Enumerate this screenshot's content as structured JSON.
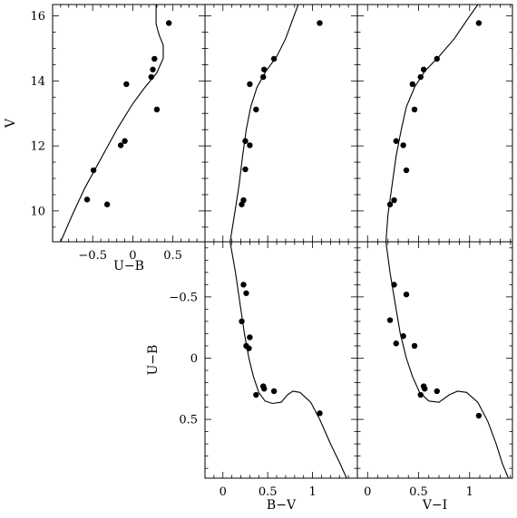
{
  "chart_data": [
    {
      "id": "vub",
      "type": "scatter",
      "xlabel": "U−B",
      "ylabel": "V",
      "xlim": [
        -1.0,
        0.9
      ],
      "ylim": [
        16.35,
        9.05
      ],
      "xticks": [
        {
          "v": -0.5,
          "l": "−0.5"
        },
        {
          "v": 0,
          "l": "0"
        },
        {
          "v": 0.5,
          "l": "0.5"
        }
      ],
      "yticks": [
        {
          "v": 10,
          "l": "10"
        },
        {
          "v": 12,
          "l": "12"
        },
        {
          "v": 14,
          "l": "14"
        },
        {
          "v": 16,
          "l": "16"
        }
      ],
      "points": [
        [
          -0.57,
          10.35
        ],
        [
          -0.49,
          11.25
        ],
        [
          -0.32,
          10.2
        ],
        [
          -0.15,
          12.02
        ],
        [
          -0.1,
          12.15
        ],
        [
          -0.08,
          13.9
        ],
        [
          0.23,
          14.12
        ],
        [
          0.25,
          14.35
        ],
        [
          0.27,
          14.68
        ],
        [
          0.3,
          13.12
        ],
        [
          0.45,
          15.78
        ]
      ],
      "curve": [
        [
          -0.9,
          9.05
        ],
        [
          -0.75,
          9.9
        ],
        [
          -0.6,
          10.7
        ],
        [
          -0.4,
          11.6
        ],
        [
          -0.2,
          12.5
        ],
        [
          0.0,
          13.3
        ],
        [
          0.15,
          13.8
        ],
        [
          0.3,
          14.25
        ],
        [
          0.38,
          14.7
        ],
        [
          0.38,
          15.1
        ],
        [
          0.33,
          15.4
        ],
        [
          0.29,
          15.75
        ],
        [
          0.29,
          16.35
        ]
      ]
    },
    {
      "id": "vbv",
      "type": "scatter",
      "xlabel": "",
      "ylabel": "",
      "xlim": [
        -0.2,
        1.5
      ],
      "ylim": [
        16.35,
        9.05
      ],
      "xticks": [],
      "yticks": [],
      "points": [
        [
          0.21,
          10.2
        ],
        [
          0.23,
          10.33
        ],
        [
          0.25,
          11.28
        ],
        [
          0.25,
          12.15
        ],
        [
          0.3,
          12.02
        ],
        [
          0.3,
          13.9
        ],
        [
          0.37,
          13.12
        ],
        [
          0.45,
          14.12
        ],
        [
          0.46,
          14.35
        ],
        [
          0.57,
          14.68
        ],
        [
          1.08,
          15.78
        ]
      ],
      "curve": [
        [
          0.08,
          9.05
        ],
        [
          0.13,
          9.9
        ],
        [
          0.18,
          10.8
        ],
        [
          0.22,
          11.7
        ],
        [
          0.26,
          12.5
        ],
        [
          0.31,
          13.2
        ],
        [
          0.38,
          13.8
        ],
        [
          0.48,
          14.3
        ],
        [
          0.6,
          14.75
        ],
        [
          0.7,
          15.3
        ],
        [
          0.78,
          15.9
        ],
        [
          0.84,
          16.35
        ]
      ]
    },
    {
      "id": "vvi",
      "type": "scatter",
      "xlabel": "",
      "ylabel": "",
      "xlim": [
        -0.1,
        1.42
      ],
      "ylim": [
        16.35,
        9.05
      ],
      "xticks": [],
      "yticks": [],
      "points": [
        [
          0.22,
          10.2
        ],
        [
          0.26,
          10.33
        ],
        [
          0.38,
          11.25
        ],
        [
          0.35,
          12.02
        ],
        [
          0.28,
          12.15
        ],
        [
          0.46,
          13.12
        ],
        [
          0.44,
          13.9
        ],
        [
          0.52,
          14.12
        ],
        [
          0.55,
          14.35
        ],
        [
          0.68,
          14.68
        ],
        [
          1.09,
          15.78
        ]
      ],
      "curve": [
        [
          0.18,
          9.05
        ],
        [
          0.2,
          9.9
        ],
        [
          0.24,
          10.8
        ],
        [
          0.28,
          11.7
        ],
        [
          0.33,
          12.5
        ],
        [
          0.38,
          13.2
        ],
        [
          0.46,
          13.8
        ],
        [
          0.56,
          14.3
        ],
        [
          0.7,
          14.75
        ],
        [
          0.85,
          15.3
        ],
        [
          0.98,
          15.9
        ],
        [
          1.08,
          16.35
        ]
      ]
    },
    {
      "id": "ubbv",
      "type": "scatter",
      "xlabel": "B−V",
      "ylabel": "U−B",
      "xlim": [
        -0.2,
        1.5
      ],
      "ylim": [
        -0.95,
        0.98
      ],
      "xticks": [
        {
          "v": 0,
          "l": "0"
        },
        {
          "v": 0.5,
          "l": "0.5"
        },
        {
          "v": 1,
          "l": "1"
        }
      ],
      "yticks": [
        {
          "v": -0.5,
          "l": "−0.5"
        },
        {
          "v": 0,
          "l": "0"
        },
        {
          "v": 0.5,
          "l": "0.5"
        }
      ],
      "points": [
        [
          0.23,
          -0.6
        ],
        [
          0.26,
          -0.53
        ],
        [
          0.21,
          -0.3
        ],
        [
          0.3,
          -0.17
        ],
        [
          0.26,
          -0.1
        ],
        [
          0.29,
          -0.08
        ],
        [
          0.37,
          0.3
        ],
        [
          0.45,
          0.23
        ],
        [
          0.46,
          0.25
        ],
        [
          0.57,
          0.27
        ],
        [
          1.08,
          0.45
        ]
      ],
      "curve": [
        [
          0.08,
          -0.95
        ],
        [
          0.14,
          -0.7
        ],
        [
          0.19,
          -0.45
        ],
        [
          0.24,
          -0.2
        ],
        [
          0.29,
          0.0
        ],
        [
          0.34,
          0.15
        ],
        [
          0.4,
          0.28
        ],
        [
          0.47,
          0.35
        ],
        [
          0.55,
          0.37
        ],
        [
          0.65,
          0.36
        ],
        [
          0.72,
          0.3
        ],
        [
          0.78,
          0.27
        ],
        [
          0.86,
          0.28
        ],
        [
          0.98,
          0.36
        ],
        [
          1.08,
          0.5
        ],
        [
          1.2,
          0.7
        ],
        [
          1.3,
          0.85
        ],
        [
          1.38,
          0.98
        ]
      ]
    },
    {
      "id": "ubvi",
      "type": "scatter",
      "xlabel": "V−I",
      "ylabel": "",
      "xlim": [
        -0.1,
        1.42
      ],
      "ylim": [
        -0.95,
        0.98
      ],
      "xticks": [
        {
          "v": 0,
          "l": "0"
        },
        {
          "v": 0.5,
          "l": "0.5"
        },
        {
          "v": 1,
          "l": "1"
        }
      ],
      "yticks": [],
      "points": [
        [
          0.26,
          -0.6
        ],
        [
          0.38,
          -0.52
        ],
        [
          0.22,
          -0.31
        ],
        [
          0.35,
          -0.18
        ],
        [
          0.28,
          -0.12
        ],
        [
          0.46,
          -0.1
        ],
        [
          0.52,
          0.3
        ],
        [
          0.55,
          0.23
        ],
        [
          0.56,
          0.25
        ],
        [
          0.68,
          0.27
        ],
        [
          1.09,
          0.47
        ]
      ],
      "curve": [
        [
          0.18,
          -0.95
        ],
        [
          0.22,
          -0.7
        ],
        [
          0.27,
          -0.45
        ],
        [
          0.32,
          -0.2
        ],
        [
          0.38,
          0.0
        ],
        [
          0.44,
          0.15
        ],
        [
          0.51,
          0.28
        ],
        [
          0.6,
          0.35
        ],
        [
          0.7,
          0.36
        ],
        [
          0.8,
          0.3
        ],
        [
          0.88,
          0.27
        ],
        [
          0.97,
          0.28
        ],
        [
          1.08,
          0.36
        ],
        [
          1.18,
          0.52
        ],
        [
          1.26,
          0.7
        ],
        [
          1.32,
          0.86
        ],
        [
          1.38,
          0.98
        ]
      ]
    }
  ]
}
